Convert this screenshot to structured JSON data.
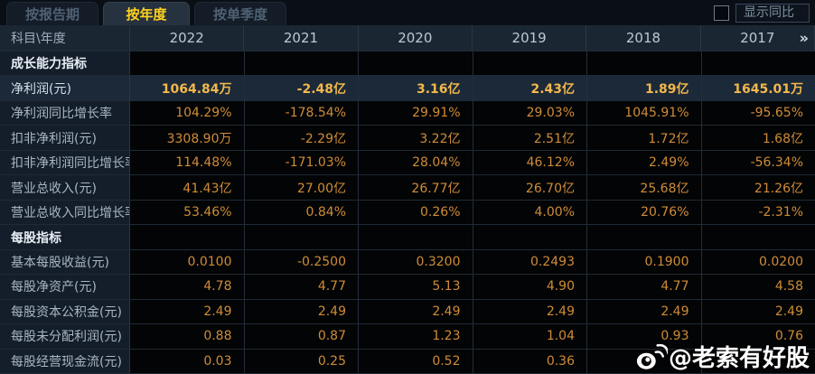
{
  "tabs": [
    {
      "label": "按报告期",
      "active": false
    },
    {
      "label": "按年度",
      "active": true
    },
    {
      "label": "按单季度",
      "active": false
    }
  ],
  "controls": {
    "show_yoy_label": "显示同比",
    "checkbox_checked": false
  },
  "table": {
    "header": {
      "label": "科目\\年度",
      "years": [
        "2022",
        "2021",
        "2020",
        "2019",
        "2018",
        "2017"
      ],
      "more_icon": "»"
    },
    "rows": [
      {
        "type": "section",
        "label": "成长能力指标",
        "values": [
          "",
          "",
          "",
          "",
          "",
          ""
        ]
      },
      {
        "type": "data",
        "highlight": true,
        "label": "净利润(元)",
        "values": [
          "1064.84万",
          "-2.48亿",
          "3.16亿",
          "2.43亿",
          "1.89亿",
          "1645.01万"
        ]
      },
      {
        "type": "data",
        "label": "净利润同比增长率",
        "values": [
          "104.29%",
          "-178.54%",
          "29.91%",
          "29.03%",
          "1045.91%",
          "-95.65%"
        ]
      },
      {
        "type": "data",
        "label": "扣非净利润(元)",
        "values": [
          "3308.90万",
          "-2.29亿",
          "3.22亿",
          "2.51亿",
          "1.72亿",
          "1.68亿"
        ]
      },
      {
        "type": "data",
        "label": "扣非净利润同比增长率",
        "values": [
          "114.48%",
          "-171.03%",
          "28.04%",
          "46.12%",
          "2.49%",
          "-56.34%"
        ]
      },
      {
        "type": "data",
        "label": "营业总收入(元)",
        "values": [
          "41.43亿",
          "27.00亿",
          "26.77亿",
          "26.70亿",
          "25.68亿",
          "21.26亿"
        ]
      },
      {
        "type": "data",
        "label": "营业总收入同比增长率",
        "values": [
          "53.46%",
          "0.84%",
          "0.26%",
          "4.00%",
          "20.76%",
          "-2.31%"
        ]
      },
      {
        "type": "section",
        "label": "每股指标",
        "values": [
          "",
          "",
          "",
          "",
          "",
          ""
        ]
      },
      {
        "type": "data",
        "label": "基本每股收益(元)",
        "values": [
          "0.0100",
          "-0.2500",
          "0.3200",
          "0.2493",
          "0.1900",
          "0.0200"
        ]
      },
      {
        "type": "data",
        "label": "每股净资产(元)",
        "values": [
          "4.78",
          "4.77",
          "5.13",
          "4.90",
          "4.77",
          "4.58"
        ]
      },
      {
        "type": "data",
        "label": "每股资本公积金(元)",
        "values": [
          "2.49",
          "2.49",
          "2.49",
          "2.49",
          "2.49",
          "2.49"
        ]
      },
      {
        "type": "data",
        "label": "每股未分配利润(元)",
        "values": [
          "0.88",
          "0.87",
          "1.23",
          "1.04",
          "0.93",
          "0.76"
        ]
      },
      {
        "type": "data",
        "label": "每股经营现金流(元)",
        "values": [
          "0.03",
          "0.25",
          "0.52",
          "0.36",
          "",
          ""
        ]
      }
    ]
  },
  "watermark": {
    "text": "@老索有好股"
  },
  "colors": {
    "accent_active_tab": "#ffd21e",
    "value_orange": "#cf8c38",
    "highlight_gold": "#f2b84b",
    "highlight_row_bg": "#1c2939",
    "header_bg": "#1b2633",
    "label_col_bg": "#141e2a"
  }
}
